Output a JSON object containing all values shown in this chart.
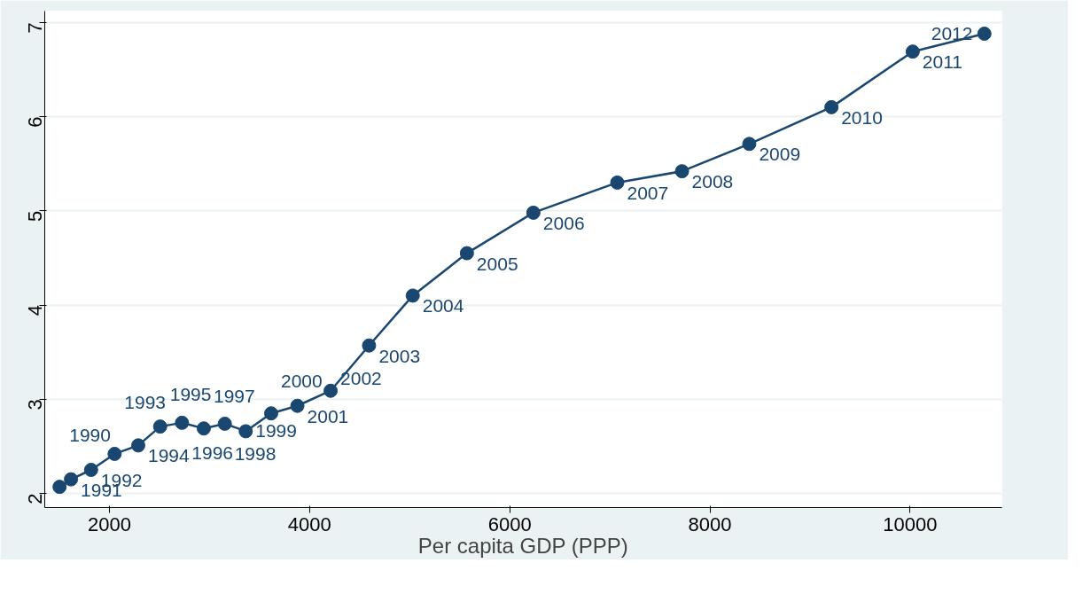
{
  "chart_data": {
    "type": "line",
    "xlabel": "Per capita GDP (PPP)",
    "x": [
      1502,
      1616,
      1817,
      2052,
      2288,
      2507,
      2725,
      2943,
      3153,
      3362,
      3616,
      3878,
      4210,
      4594,
      5031,
      5572,
      6236,
      7074,
      7721,
      8393,
      9214,
      10026,
      10742
    ],
    "series": [
      {
        "color": "#1a476f",
        "values": [
          2.07,
          2.15,
          2.25,
          2.42,
          2.51,
          2.71,
          2.75,
          2.69,
          2.74,
          2.66,
          2.85,
          2.93,
          3.09,
          3.57,
          4.1,
          4.55,
          4.98,
          5.3,
          5.42,
          5.71,
          6.1,
          6.69,
          6.88
        ]
      }
    ],
    "annotations": [
      {
        "text": "1990",
        "x": 1502,
        "y": 2.07
      },
      {
        "text": "1991",
        "x": 1616,
        "y": 2.15
      },
      {
        "text": "1992",
        "x": 1817,
        "y": 2.25
      },
      {
        "text": "1993",
        "x": 2052,
        "y": 2.42
      },
      {
        "text": "1994",
        "x": 2288,
        "y": 2.51
      },
      {
        "text": "1995",
        "x": 2507,
        "y": 2.71
      },
      {
        "text": "1996",
        "x": 2725,
        "y": 2.75
      },
      {
        "text": "1997",
        "x": 2943,
        "y": 2.69
      },
      {
        "text": "1998",
        "x": 3153,
        "y": 2.74
      },
      {
        "text": "1999",
        "x": 3362,
        "y": 2.66
      },
      {
        "text": "2000",
        "x": 3616,
        "y": 2.85
      },
      {
        "text": "2001",
        "x": 3878,
        "y": 2.93
      },
      {
        "text": "2002",
        "x": 4210,
        "y": 3.09
      },
      {
        "text": "2003",
        "x": 4594,
        "y": 3.57
      },
      {
        "text": "2004",
        "x": 5031,
        "y": 4.1
      },
      {
        "text": "2005",
        "x": 5572,
        "y": 4.55
      },
      {
        "text": "2006",
        "x": 6236,
        "y": 4.98
      },
      {
        "text": "2007",
        "x": 7074,
        "y": 5.3
      },
      {
        "text": "2008",
        "x": 7721,
        "y": 5.42
      },
      {
        "text": "2009",
        "x": 8393,
        "y": 5.71
      },
      {
        "text": "2010",
        "x": 9214,
        "y": 6.1
      },
      {
        "text": "2011",
        "x": 10026,
        "y": 6.69
      },
      {
        "text": "2012",
        "x": 10742,
        "y": 6.88
      }
    ],
    "xlim": [
      1354,
      10917
    ],
    "ylim": [
      1.85,
      7.12
    ],
    "xticks": [
      2000,
      4000,
      6000,
      8000,
      10000
    ],
    "yticks": [
      2,
      3,
      4,
      5,
      6,
      7
    ],
    "grid": "y",
    "marker": "circle",
    "line_style": "solid"
  }
}
